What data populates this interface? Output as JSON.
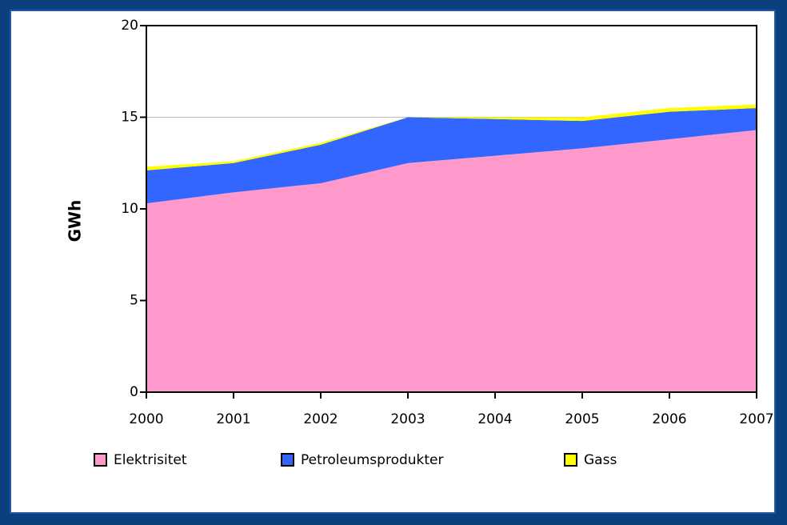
{
  "chart_data": {
    "type": "stacked_area",
    "y_label": "GWh",
    "x": [
      2000,
      2001,
      2002,
      2003,
      2004,
      2005,
      2006,
      2007
    ],
    "xlim": [
      2000,
      2007
    ],
    "xticks": [
      2000,
      2001,
      2002,
      2003,
      2004,
      2005,
      2006,
      2007
    ],
    "ylim": [
      0,
      20
    ],
    "yticks": [
      0,
      5,
      10,
      15,
      20
    ],
    "grid": true,
    "legend": "bottom",
    "series": [
      {
        "name": "Elektrisitet",
        "color": "#ff99cc",
        "values": [
          10.3,
          10.9,
          11.4,
          12.5,
          12.9,
          13.3,
          13.8,
          14.3
        ]
      },
      {
        "name": "Petroleumsprodukter",
        "color": "#3366ff",
        "values": [
          1.8,
          1.6,
          2.1,
          2.5,
          2.0,
          1.5,
          1.5,
          1.2
        ]
      },
      {
        "name": "Gass",
        "color": "#ffff00",
        "values": [
          0.2,
          0.1,
          0.1,
          0,
          0.1,
          0.2,
          0.2,
          0.2
        ]
      }
    ]
  }
}
